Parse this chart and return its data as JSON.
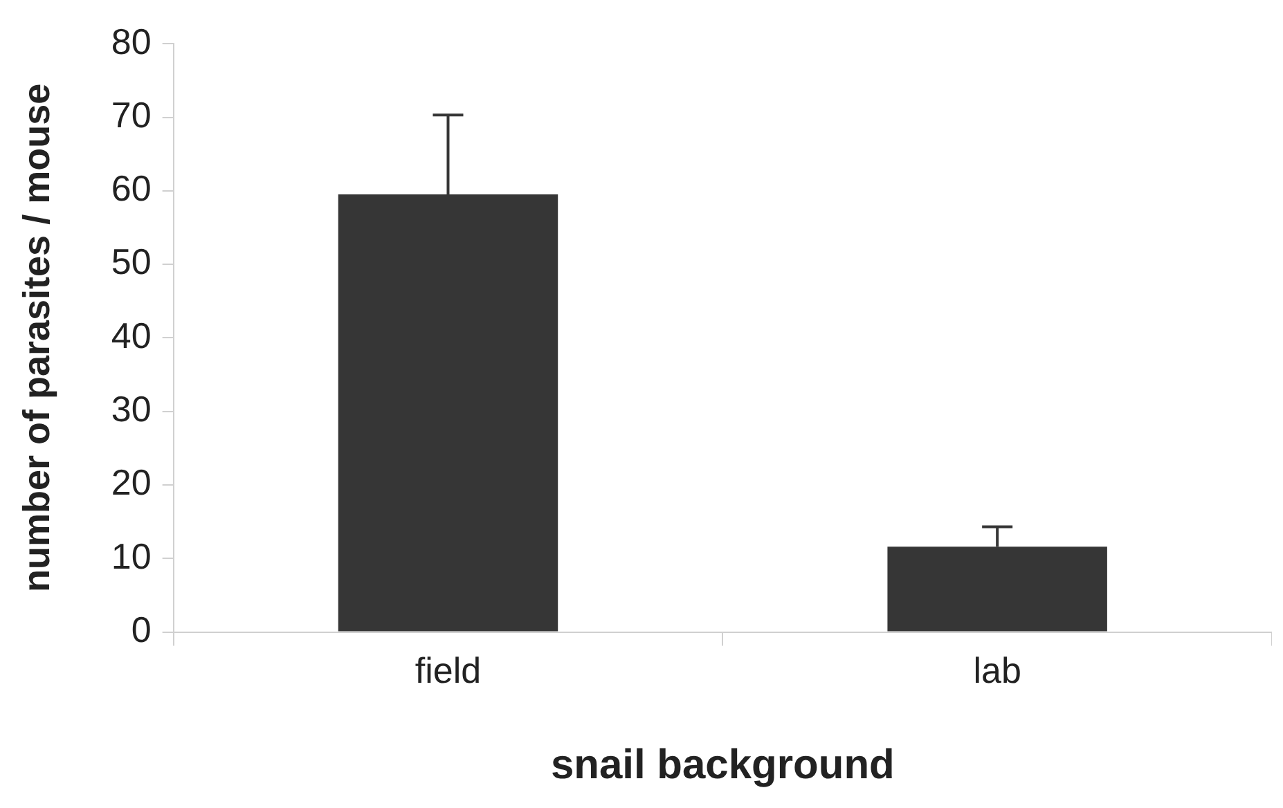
{
  "chart_data": {
    "type": "bar",
    "xlabel": "snail background",
    "ylabel": "number of parasites / mouse",
    "categories": [
      "field",
      "lab"
    ],
    "values": [
      59.5,
      11.6
    ],
    "errors": [
      [
        59.5,
        70.3
      ],
      [
        11.6,
        14.3
      ]
    ],
    "color": "#363636",
    "ylim": [
      0,
      80
    ],
    "yticks": [
      0,
      10,
      20,
      30,
      40,
      50,
      60,
      70,
      80
    ],
    "grid": false,
    "legend": false
  }
}
